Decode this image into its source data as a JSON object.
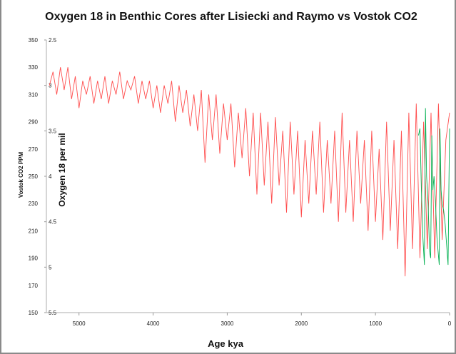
{
  "chart_data": {
    "type": "line",
    "title": "Oxygen 18 in Benthic Cores after Lisiecki and Raymo vs Vostok CO2",
    "xlabel": "Age kya",
    "ylabel_left": "Vostok CO2 PPM",
    "ylabel_secondary": "Oxygen 18 per mil",
    "xlim": [
      5440,
      0
    ],
    "x_ticks": [
      "5000",
      "4000",
      "3000",
      "2000",
      "1000",
      "0"
    ],
    "x_tick_values": [
      5000,
      4000,
      3000,
      2000,
      1000,
      0
    ],
    "ylim_co2": [
      150,
      350
    ],
    "y_ticks_co2": [
      "350",
      "330",
      "310",
      "290",
      "270",
      "250",
      "230",
      "210",
      "190",
      "170",
      "150"
    ],
    "ylim_o18_inverted": [
      2.5,
      5.5
    ],
    "y_ticks_o18": [
      "2.5",
      "3",
      "3.5",
      "4",
      "4.5",
      "5",
      "5.5"
    ],
    "grid": false,
    "legend": "none",
    "series": [
      {
        "axis": "o18",
        "color": "#ff4d4d",
        "x": [
          5400,
          5350,
          5300,
          5250,
          5200,
          5150,
          5100,
          5050,
          5000,
          4950,
          4900,
          4850,
          4800,
          4750,
          4700,
          4650,
          4600,
          4550,
          4500,
          4450,
          4400,
          4350,
          4300,
          4250,
          4200,
          4150,
          4100,
          4050,
          4000,
          3950,
          3900,
          3850,
          3800,
          3750,
          3700,
          3650,
          3600,
          3550,
          3500,
          3450,
          3400,
          3350,
          3300,
          3250,
          3200,
          3150,
          3100,
          3050,
          3000,
          2950,
          2900,
          2850,
          2800,
          2750,
          2700,
          2650,
          2600,
          2550,
          2500,
          2450,
          2400,
          2350,
          2300,
          2250,
          2200,
          2150,
          2100,
          2050,
          2000,
          1950,
          1900,
          1850,
          1800,
          1750,
          1700,
          1650,
          1600,
          1550,
          1500,
          1450,
          1400,
          1350,
          1300,
          1250,
          1200,
          1150,
          1100,
          1050,
          1000,
          950,
          900,
          850,
          800,
          750,
          700,
          650,
          600,
          550,
          500,
          450,
          400,
          350,
          300,
          250,
          200,
          150,
          100,
          50,
          0
        ],
        "y": [
          3.0,
          2.85,
          3.1,
          2.8,
          3.05,
          2.8,
          3.15,
          2.9,
          3.25,
          2.95,
          3.1,
          2.9,
          3.2,
          2.95,
          3.15,
          2.9,
          3.2,
          2.95,
          3.1,
          2.85,
          3.15,
          2.95,
          3.05,
          2.9,
          3.2,
          2.95,
          3.15,
          2.95,
          3.25,
          3.0,
          3.3,
          3.0,
          3.2,
          2.95,
          3.4,
          3.0,
          3.3,
          3.05,
          3.45,
          3.1,
          3.5,
          3.05,
          3.85,
          3.1,
          3.6,
          3.1,
          3.75,
          3.2,
          3.6,
          3.2,
          3.9,
          3.3,
          3.8,
          3.25,
          4.0,
          3.3,
          4.2,
          3.3,
          4.1,
          3.4,
          4.3,
          3.35,
          4.1,
          3.5,
          4.4,
          3.4,
          4.2,
          3.5,
          4.45,
          3.6,
          4.3,
          3.5,
          4.2,
          3.4,
          4.4,
          3.6,
          4.3,
          3.5,
          4.5,
          3.3,
          4.4,
          3.6,
          4.5,
          3.5,
          4.3,
          3.6,
          4.6,
          3.5,
          4.5,
          3.7,
          4.7,
          3.4,
          4.6,
          3.6,
          4.8,
          3.5,
          5.1,
          3.3,
          4.8,
          3.2,
          4.9,
          3.4,
          4.8,
          3.3,
          4.9,
          3.2,
          4.7,
          3.6,
          3.3
        ]
      },
      {
        "axis": "co2",
        "color": "#00b050",
        "x": [
          420,
          400,
          380,
          360,
          340,
          325,
          310,
          290,
          270,
          255,
          240,
          225,
          210,
          190,
          170,
          155,
          140,
          130,
          115,
          100,
          80,
          60,
          40,
          20,
          10,
          0
        ],
        "y": [
          280,
          285,
          240,
          205,
          185,
          300,
          250,
          230,
          195,
          190,
          280,
          240,
          250,
          230,
          205,
          195,
          185,
          285,
          240,
          230,
          225,
          215,
          200,
          185,
          240,
          285
        ]
      }
    ]
  }
}
